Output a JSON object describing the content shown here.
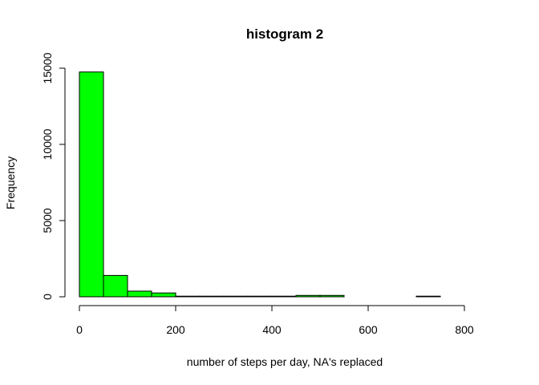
{
  "chart_data": {
    "type": "bar",
    "title": "histogram 2",
    "xlabel": "number of steps per day, NA's replaced",
    "ylabel": "Frequency",
    "bar_color": "#00ff00",
    "bin_width": 50,
    "bins": [
      {
        "start": 0,
        "end": 50,
        "count": 14750
      },
      {
        "start": 50,
        "end": 100,
        "count": 1400
      },
      {
        "start": 100,
        "end": 150,
        "count": 370
      },
      {
        "start": 150,
        "end": 200,
        "count": 250
      },
      {
        "start": 200,
        "end": 250,
        "count": 40
      },
      {
        "start": 250,
        "end": 300,
        "count": 40
      },
      {
        "start": 300,
        "end": 350,
        "count": 40
      },
      {
        "start": 350,
        "end": 400,
        "count": 40
      },
      {
        "start": 400,
        "end": 450,
        "count": 40
      },
      {
        "start": 450,
        "end": 500,
        "count": 90
      },
      {
        "start": 500,
        "end": 550,
        "count": 90
      },
      {
        "start": 550,
        "end": 600,
        "count": 0
      },
      {
        "start": 600,
        "end": 650,
        "count": 0
      },
      {
        "start": 650,
        "end": 700,
        "count": 0
      },
      {
        "start": 700,
        "end": 750,
        "count": 40
      },
      {
        "start": 750,
        "end": 800,
        "count": 0
      },
      {
        "start": 800,
        "end": 850,
        "count": 0
      }
    ],
    "xlim": [
      0,
      850
    ],
    "ylim": [
      0,
      15000
    ],
    "xticks": [
      0,
      200,
      400,
      600,
      800
    ],
    "yticks": [
      0,
      5000,
      10000,
      15000
    ],
    "grid": false,
    "legend": "none"
  }
}
